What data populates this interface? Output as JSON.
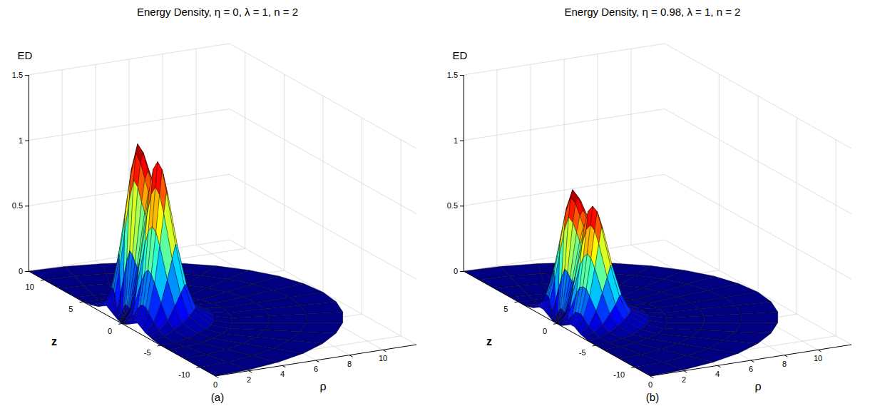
{
  "chart_data": [
    {
      "type": "surface",
      "title": "Energy Density, η = 0, λ = 1, n = 2",
      "panel": "(a)",
      "x_label": "ρ",
      "y_label": "z",
      "z_label": "ED",
      "xlim": [
        0,
        12
      ],
      "xticks": [
        0,
        2,
        4,
        6,
        8,
        10
      ],
      "ylim": [
        -12,
        12
      ],
      "yticks": [
        -10,
        -5,
        0,
        5,
        10
      ],
      "zlim": [
        0,
        1.5
      ],
      "zticks": [
        0,
        0.5,
        1,
        1.5
      ],
      "grid": true,
      "r": [
        0,
        0.5,
        1,
        1.5,
        1.75,
        2,
        2.25,
        2.5,
        3,
        3.5,
        4,
        5,
        6,
        8,
        10,
        12
      ],
      "theta": [
        0,
        10,
        20,
        30,
        40,
        50,
        60,
        70,
        80,
        90,
        100,
        110,
        120,
        130,
        140,
        150,
        160,
        170,
        180
      ],
      "values": [
        [
          0,
          0,
          0,
          0,
          0,
          0,
          0,
          0,
          0,
          0,
          0,
          0,
          0,
          0,
          0,
          0,
          0,
          0,
          0
        ],
        [
          0.01,
          0.02,
          0.05,
          0.08,
          0.11,
          0.13,
          0.12,
          0.11,
          0.1,
          0.1,
          0.1,
          0.11,
          0.12,
          0.12,
          0.11,
          0.08,
          0.05,
          0.02,
          0.01
        ],
        [
          0.03,
          0.08,
          0.18,
          0.31,
          0.44,
          0.52,
          0.49,
          0.44,
          0.41,
          0.39,
          0.41,
          0.44,
          0.48,
          0.5,
          0.43,
          0.31,
          0.18,
          0.08,
          0.03
        ],
        [
          0.05,
          0.16,
          0.36,
          0.62,
          0.88,
          1.04,
          0.99,
          0.88,
          0.81,
          0.78,
          0.81,
          0.88,
          0.96,
          1.0,
          0.85,
          0.62,
          0.36,
          0.16,
          0.05
        ],
        [
          0.06,
          0.19,
          0.43,
          0.74,
          1.05,
          1.24,
          1.17,
          1.05,
          0.96,
          0.93,
          0.96,
          1.05,
          1.14,
          1.19,
          1.01,
          0.74,
          0.43,
          0.19,
          0.06
        ],
        [
          0.07,
          0.2,
          0.46,
          0.78,
          1.11,
          1.3,
          1.24,
          1.11,
          1.01,
          0.98,
          1.01,
          1.11,
          1.2,
          1.25,
          1.07,
          0.78,
          0.46,
          0.2,
          0.07
        ],
        [
          0.06,
          0.19,
          0.43,
          0.74,
          1.05,
          1.24,
          1.17,
          1.05,
          0.96,
          0.93,
          0.96,
          1.05,
          1.14,
          1.19,
          1.01,
          0.74,
          0.43,
          0.19,
          0.06
        ],
        [
          0.05,
          0.16,
          0.37,
          0.64,
          0.91,
          1.07,
          1.01,
          0.91,
          0.83,
          0.8,
          0.83,
          0.91,
          0.98,
          1.02,
          0.87,
          0.64,
          0.37,
          0.16,
          0.05
        ],
        [
          0.03,
          0.1,
          0.23,
          0.39,
          0.55,
          0.65,
          0.62,
          0.55,
          0.51,
          0.49,
          0.51,
          0.55,
          0.6,
          0.62,
          0.53,
          0.39,
          0.23,
          0.1,
          0.03
        ],
        [
          0.02,
          0.05,
          0.11,
          0.2,
          0.28,
          0.33,
          0.31,
          0.28,
          0.25,
          0.24,
          0.25,
          0.28,
          0.3,
          0.31,
          0.27,
          0.2,
          0.11,
          0.05,
          0.02
        ],
        [
          0.01,
          0.02,
          0.05,
          0.08,
          0.11,
          0.13,
          0.12,
          0.11,
          0.1,
          0.1,
          0.1,
          0.11,
          0.12,
          0.12,
          0.11,
          0.08,
          0.05,
          0.02,
          0.01
        ],
        [
          0,
          0,
          0.01,
          0.02,
          0.02,
          0.03,
          0.02,
          0.02,
          0.02,
          0.02,
          0.02,
          0.02,
          0.02,
          0.02,
          0.02,
          0.02,
          0.01,
          0,
          0
        ],
        [
          0,
          0,
          0,
          0,
          0,
          0,
          0,
          0,
          0,
          0,
          0,
          0,
          0,
          0,
          0,
          0,
          0,
          0,
          0
        ],
        [
          0,
          0,
          0,
          0,
          0,
          0,
          0,
          0,
          0,
          0,
          0,
          0,
          0,
          0,
          0,
          0,
          0,
          0,
          0
        ],
        [
          0,
          0,
          0,
          0,
          0,
          0,
          0,
          0,
          0,
          0,
          0,
          0,
          0,
          0,
          0,
          0,
          0,
          0,
          0
        ],
        [
          0,
          0,
          0,
          0,
          0,
          0,
          0,
          0,
          0,
          0,
          0,
          0,
          0,
          0,
          0,
          0,
          0,
          0,
          0
        ]
      ]
    },
    {
      "type": "surface",
      "title": "Energy Density, η = 0.98, λ = 1, n = 2",
      "panel": "(b)",
      "x_label": "ρ",
      "y_label": "z",
      "z_label": "ED",
      "xlim": [
        0,
        12
      ],
      "xticks": [
        0,
        2,
        4,
        6,
        8,
        10
      ],
      "ylim": [
        -12,
        12
      ],
      "yticks": [
        -10,
        -5,
        0,
        5
      ],
      "zlim": [
        0,
        1.5
      ],
      "zticks": [
        0,
        0.5,
        1,
        1.5
      ],
      "grid": true,
      "r": [
        0,
        0.5,
        1,
        1.5,
        1.75,
        2,
        2.25,
        2.5,
        3,
        3.5,
        4,
        5,
        6,
        8,
        10,
        12
      ],
      "theta": [
        0,
        10,
        20,
        30,
        40,
        50,
        60,
        70,
        80,
        90,
        100,
        110,
        120,
        130,
        140,
        150,
        160,
        170,
        180
      ],
      "values": [
        [
          0,
          0,
          0,
          0,
          0,
          0,
          0,
          0,
          0,
          0,
          0,
          0,
          0,
          0,
          0,
          0,
          0,
          0,
          0
        ],
        [
          0,
          0.01,
          0.03,
          0.06,
          0.08,
          0.1,
          0.09,
          0.08,
          0.07,
          0.07,
          0.07,
          0.08,
          0.09,
          0.09,
          0.08,
          0.06,
          0.03,
          0.01,
          0
        ],
        [
          0.02,
          0.06,
          0.13,
          0.23,
          0.32,
          0.38,
          0.36,
          0.32,
          0.3,
          0.29,
          0.3,
          0.32,
          0.35,
          0.36,
          0.31,
          0.23,
          0.13,
          0.06,
          0.02
        ],
        [
          0.04,
          0.11,
          0.27,
          0.46,
          0.65,
          0.76,
          0.72,
          0.65,
          0.59,
          0.57,
          0.59,
          0.65,
          0.7,
          0.73,
          0.62,
          0.46,
          0.27,
          0.11,
          0.04
        ],
        [
          0.05,
          0.14,
          0.32,
          0.54,
          0.77,
          0.9,
          0.86,
          0.77,
          0.7,
          0.68,
          0.7,
          0.77,
          0.83,
          0.87,
          0.74,
          0.54,
          0.32,
          0.14,
          0.05
        ],
        [
          0.05,
          0.14,
          0.33,
          0.57,
          0.81,
          0.95,
          0.9,
          0.81,
          0.74,
          0.71,
          0.74,
          0.81,
          0.87,
          0.91,
          0.78,
          0.57,
          0.33,
          0.14,
          0.05
        ],
        [
          0.05,
          0.14,
          0.32,
          0.54,
          0.77,
          0.9,
          0.86,
          0.77,
          0.7,
          0.68,
          0.7,
          0.77,
          0.83,
          0.87,
          0.74,
          0.54,
          0.32,
          0.14,
          0.05
        ],
        [
          0.04,
          0.12,
          0.27,
          0.47,
          0.66,
          0.78,
          0.74,
          0.66,
          0.61,
          0.58,
          0.61,
          0.66,
          0.72,
          0.75,
          0.64,
          0.47,
          0.27,
          0.12,
          0.04
        ],
        [
          0.02,
          0.07,
          0.17,
          0.29,
          0.4,
          0.48,
          0.45,
          0.4,
          0.37,
          0.36,
          0.37,
          0.4,
          0.44,
          0.46,
          0.39,
          0.29,
          0.17,
          0.07,
          0.02
        ],
        [
          0.01,
          0.04,
          0.08,
          0.14,
          0.2,
          0.24,
          0.23,
          0.2,
          0.19,
          0.18,
          0.19,
          0.2,
          0.22,
          0.23,
          0.19,
          0.14,
          0.08,
          0.04,
          0.01
        ],
        [
          0,
          0.01,
          0.03,
          0.06,
          0.08,
          0.1,
          0.09,
          0.08,
          0.07,
          0.07,
          0.07,
          0.08,
          0.09,
          0.09,
          0.08,
          0.06,
          0.03,
          0.01,
          0
        ],
        [
          0,
          0,
          0.01,
          0.01,
          0.02,
          0.02,
          0.02,
          0.02,
          0.01,
          0.01,
          0.01,
          0.02,
          0.02,
          0.02,
          0.02,
          0.01,
          0.01,
          0,
          0
        ],
        [
          0,
          0,
          0,
          0,
          0,
          0,
          0,
          0,
          0,
          0,
          0,
          0,
          0,
          0,
          0,
          0,
          0,
          0,
          0
        ],
        [
          0,
          0,
          0,
          0,
          0,
          0,
          0,
          0,
          0,
          0,
          0,
          0,
          0,
          0,
          0,
          0,
          0,
          0,
          0
        ],
        [
          0,
          0,
          0,
          0,
          0,
          0,
          0,
          0,
          0,
          0,
          0,
          0,
          0,
          0,
          0,
          0,
          0,
          0,
          0
        ],
        [
          0,
          0,
          0,
          0,
          0,
          0,
          0,
          0,
          0,
          0,
          0,
          0,
          0,
          0,
          0,
          0,
          0,
          0,
          0
        ]
      ]
    }
  ]
}
